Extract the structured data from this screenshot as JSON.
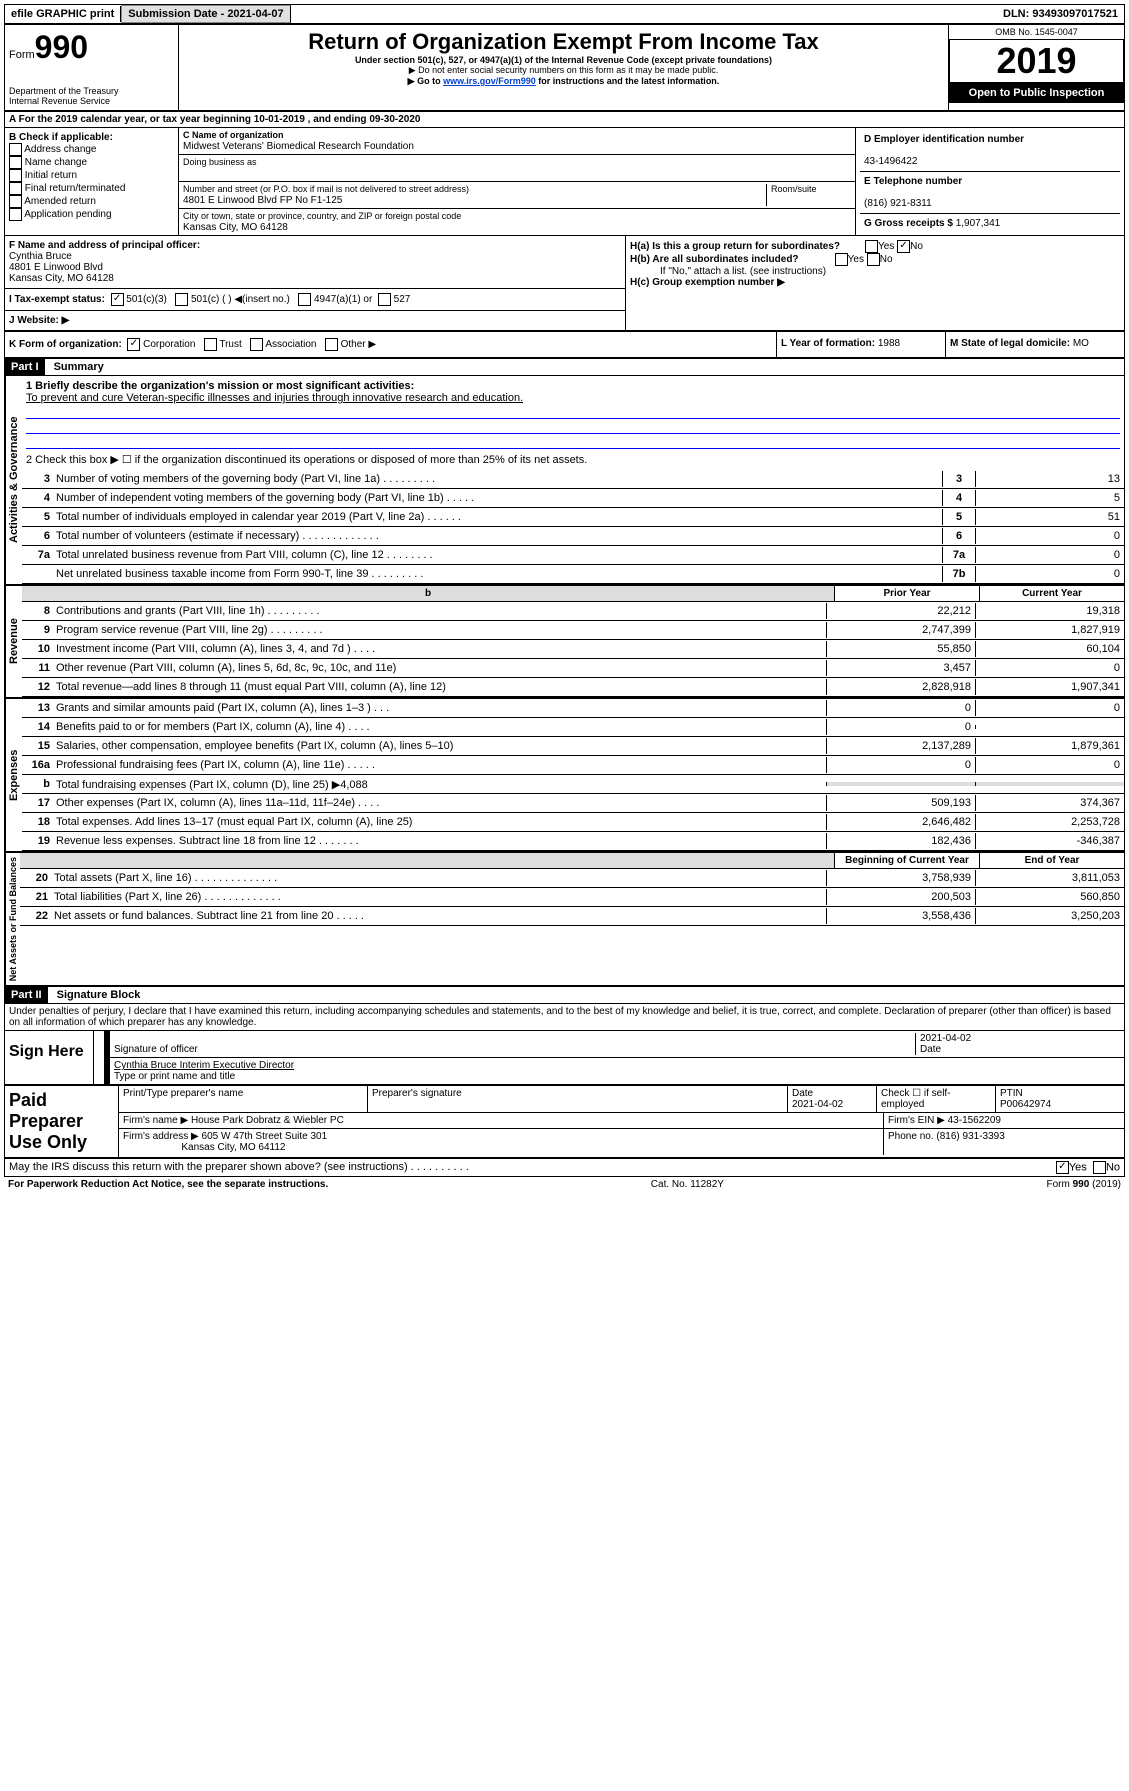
{
  "topbar": {
    "efile": "efile GRAPHIC print",
    "submission_label": "Submission Date - 2021-04-07",
    "dln_label": "DLN: 93493097017521"
  },
  "header": {
    "form_label": "Form",
    "form_number": "990",
    "dept1": "Department of the Treasury",
    "dept2": "Internal Revenue Service",
    "title": "Return of Organization Exempt From Income Tax",
    "subtitle": "Under section 501(c), 527, or 4947(a)(1) of the Internal Revenue Code (except private foundations)",
    "note1": "▶ Do not enter social security numbers on this form as it may be made public.",
    "note2_pre": "▶ Go to ",
    "note2_link": "www.irs.gov/Form990",
    "note2_post": " for instructions and the latest information.",
    "omb": "OMB No. 1545-0047",
    "year": "2019",
    "open": "Open to Public Inspection"
  },
  "sectionA": "A For the 2019 calendar year, or tax year beginning 10-01-2019     , and ending 09-30-2020",
  "sectionB": {
    "label": "B Check if applicable:",
    "items": [
      "Address change",
      "Name change",
      "Initial return",
      "Final return/terminated",
      "Amended return",
      "Application pending"
    ]
  },
  "sectionC": {
    "name_label": "C Name of organization",
    "name": "Midwest Veterans' Biomedical Research Foundation",
    "dba_label": "Doing business as",
    "addr_label": "Number and street (or P.O. box if mail is not delivered to street address)",
    "room_label": "Room/suite",
    "addr": "4801 E Linwood Blvd FP No F1-125",
    "city_label": "City or town, state or province, country, and ZIP or foreign postal code",
    "city": "Kansas City, MO  64128"
  },
  "sectionD": {
    "ein_label": "D Employer identification number",
    "ein": "43-1496422",
    "phone_label": "E Telephone number",
    "phone": "(816) 921-8311",
    "gross_label": "G Gross receipts $",
    "gross": "1,907,341"
  },
  "sectionF": {
    "label": "F  Name and address of principal officer:",
    "name": "Cynthia Bruce",
    "addr1": "4801 E Linwood Blvd",
    "addr2": "Kansas City, MO  64128"
  },
  "sectionH": {
    "ha": "H(a)  Is this a group return for subordinates?",
    "hb": "H(b)  Are all subordinates included?",
    "hb_note": "If \"No,\" attach a list. (see instructions)",
    "hc": "H(c)  Group exemption number ▶"
  },
  "sectionI": {
    "label": "I  Tax-exempt status:",
    "opt1": "501(c)(3)",
    "opt2": "501(c) (   ) ◀(insert no.)",
    "opt3": "4947(a)(1) or",
    "opt4": "527"
  },
  "sectionJ": "J   Website: ▶",
  "sectionK": {
    "label": "K Form of organization:",
    "opts": [
      "Corporation",
      "Trust",
      "Association",
      "Other ▶"
    ]
  },
  "sectionL": {
    "label": "L Year of formation:",
    "val": "1988"
  },
  "sectionM": {
    "label": "M State of legal domicile:",
    "val": "MO"
  },
  "part1": {
    "header": "Part I",
    "title": "Summary",
    "line1_label": "1  Briefly describe the organization's mission or most significant activities:",
    "line1_text": "To prevent and cure Veteran-specific illnesses and injuries through innovative research and education.",
    "line2": "2    Check this box ▶ ☐  if the organization discontinued its operations or disposed of more than 25% of its net assets.",
    "governance_label": "Activities & Governance",
    "revenue_label": "Revenue",
    "expenses_label": "Expenses",
    "netassets_label": "Net Assets or Fund Balances",
    "lines_gov": [
      {
        "n": "3",
        "t": "Number of voting members of the governing body (Part VI, line 1a)   .   .   .   .   .   .   .   .   .",
        "box": "3",
        "v": "13"
      },
      {
        "n": "4",
        "t": "Number of independent voting members of the governing body (Part VI, line 1b)   .   .   .   .   .",
        "box": "4",
        "v": "5"
      },
      {
        "n": "5",
        "t": "Total number of individuals employed in calendar year 2019 (Part V, line 2a)   .   .   .   .   .   .",
        "box": "5",
        "v": "51"
      },
      {
        "n": "6",
        "t": "Total number of volunteers (estimate if necessary)   .   .   .   .   .   .   .   .   .   .   .   .   .",
        "box": "6",
        "v": "0"
      },
      {
        "n": "7a",
        "t": "Total unrelated business revenue from Part VIII, column (C), line 12   .   .   .   .   .   .   .   .",
        "box": "7a",
        "v": "0"
      },
      {
        "n": "",
        "t": "Net unrelated business taxable income from Form 990-T, line 39   .   .   .   .   .   .   .   .   .",
        "box": "7b",
        "v": "0"
      }
    ],
    "prior_label": "Prior Year",
    "current_label": "Current Year",
    "begin_label": "Beginning of Current Year",
    "end_label": "End of Year",
    "lines_rev": [
      {
        "n": "8",
        "t": "Contributions and grants (Part VIII, line 1h)   .   .   .   .   .   .   .   .   .",
        "p": "22,212",
        "c": "19,318"
      },
      {
        "n": "9",
        "t": "Program service revenue (Part VIII, line 2g)   .   .   .   .   .   .   .   .   .",
        "p": "2,747,399",
        "c": "1,827,919"
      },
      {
        "n": "10",
        "t": "Investment income (Part VIII, column (A), lines 3, 4, and 7d )   .   .   .   .",
        "p": "55,850",
        "c": "60,104"
      },
      {
        "n": "11",
        "t": "Other revenue (Part VIII, column (A), lines 5, 6d, 8c, 9c, 10c, and 11e)",
        "p": "3,457",
        "c": "0"
      },
      {
        "n": "12",
        "t": "Total revenue—add lines 8 through 11 (must equal Part VIII, column (A), line 12)",
        "p": "2,828,918",
        "c": "1,907,341"
      }
    ],
    "lines_exp": [
      {
        "n": "13",
        "t": "Grants and similar amounts paid (Part IX, column (A), lines 1–3 )   .   .   .",
        "p": "0",
        "c": "0"
      },
      {
        "n": "14",
        "t": "Benefits paid to or for members (Part IX, column (A), line 4)   .   .   .   .",
        "p": "0",
        "c": ""
      },
      {
        "n": "15",
        "t": "Salaries, other compensation, employee benefits (Part IX, column (A), lines 5–10)",
        "p": "2,137,289",
        "c": "1,879,361"
      },
      {
        "n": "16a",
        "t": "Professional fundraising fees (Part IX, column (A), line 11e)   .   .   .   .   .",
        "p": "0",
        "c": "0"
      },
      {
        "n": "b",
        "t": "Total fundraising expenses (Part IX, column (D), line 25) ▶4,088",
        "p": "",
        "c": "",
        "grey": true
      },
      {
        "n": "17",
        "t": "Other expenses (Part IX, column (A), lines 11a–11d, 11f–24e)   .   .   .   .",
        "p": "509,193",
        "c": "374,367"
      },
      {
        "n": "18",
        "t": "Total expenses. Add lines 13–17 (must equal Part IX, column (A), line 25)",
        "p": "2,646,482",
        "c": "2,253,728"
      },
      {
        "n": "19",
        "t": "Revenue less expenses. Subtract line 18 from line 12   .   .   .   .   .   .   .",
        "p": "182,436",
        "c": "-346,387"
      }
    ],
    "lines_net": [
      {
        "n": "20",
        "t": "Total assets (Part X, line 16)   .   .   .   .   .   .   .   .   .   .   .   .   .   .",
        "p": "3,758,939",
        "c": "3,811,053"
      },
      {
        "n": "21",
        "t": "Total liabilities (Part X, line 26)   .   .   .   .   .   .   .   .   .   .   .   .   .",
        "p": "200,503",
        "c": "560,850"
      },
      {
        "n": "22",
        "t": "Net assets or fund balances. Subtract line 21 from line 20   .   .   .   .   .",
        "p": "3,558,436",
        "c": "3,250,203"
      }
    ]
  },
  "part2": {
    "header": "Part II",
    "title": "Signature Block",
    "declaration": "Under penalties of perjury, I declare that I have examined this return, including accompanying schedules and statements, and to the best of my knowledge and belief, it is true, correct, and complete. Declaration of preparer (other than officer) is based on all information of which preparer has any knowledge.",
    "sign_here": "Sign Here",
    "sig_officer": "Signature of officer",
    "sig_date": "2021-04-02",
    "date_label": "Date",
    "officer_name": "Cynthia Bruce Interim Executive Director",
    "type_label": "Type or print name and title",
    "paid_prep": "Paid Preparer Use Only",
    "prep_name_label": "Print/Type preparer's name",
    "prep_sig_label": "Preparer's signature",
    "prep_date": "2021-04-02",
    "check_label": "Check ☐ if self-employed",
    "ptin_label": "PTIN",
    "ptin": "P00642974",
    "firm_name_label": "Firm's name     ▶",
    "firm_name": "House Park Dobratz & Wiebler PC",
    "firm_ein_label": "Firm's EIN ▶",
    "firm_ein": "43-1562209",
    "firm_addr_label": "Firm's address ▶",
    "firm_addr1": "605 W 47th Street Suite 301",
    "firm_addr2": "Kansas City, MO  64112",
    "firm_phone_label": "Phone no.",
    "firm_phone": "(816) 931-3393",
    "discuss": "May the IRS discuss this return with the preparer shown above? (see instructions)    .    .    .    .    .    .    .    .    .    .",
    "yes": "Yes",
    "no": "No"
  },
  "footer": {
    "left": "For Paperwork Reduction Act Notice, see the separate instructions.",
    "mid": "Cat. No. 11282Y",
    "right": "Form 990 (2019)"
  }
}
